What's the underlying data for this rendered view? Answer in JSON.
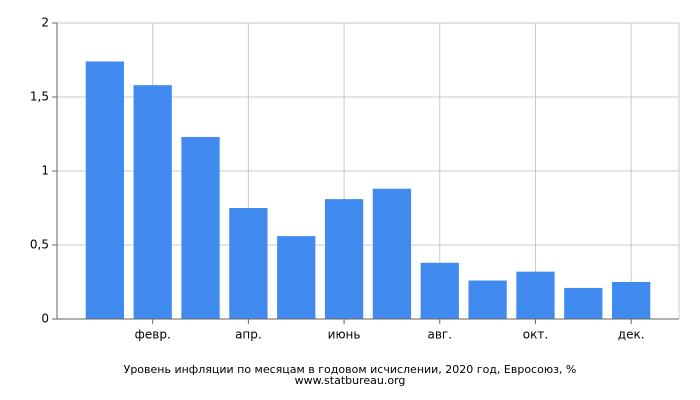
{
  "chart_data": {
    "type": "bar",
    "title": "Уровень инфляции по месяцам в годовом исчислении, 2020 год, Евросоюз, %",
    "source": "www.statbureau.org",
    "categories": [
      null,
      "февр.",
      null,
      "апр.",
      null,
      "июнь",
      null,
      "авг.",
      null,
      "окт.",
      null,
      "дек."
    ],
    "values": [
      1.74,
      1.58,
      1.23,
      0.75,
      0.56,
      0.81,
      0.88,
      0.38,
      0.26,
      0.32,
      0.21,
      0.25
    ],
    "color": "#418bf0",
    "ylim": [
      0,
      2
    ],
    "yticks": [
      0,
      {
        "value": 0.5,
        "label": "0,5"
      },
      1,
      {
        "value": 1.5,
        "label": "1,5"
      },
      2
    ],
    "grid": true
  }
}
